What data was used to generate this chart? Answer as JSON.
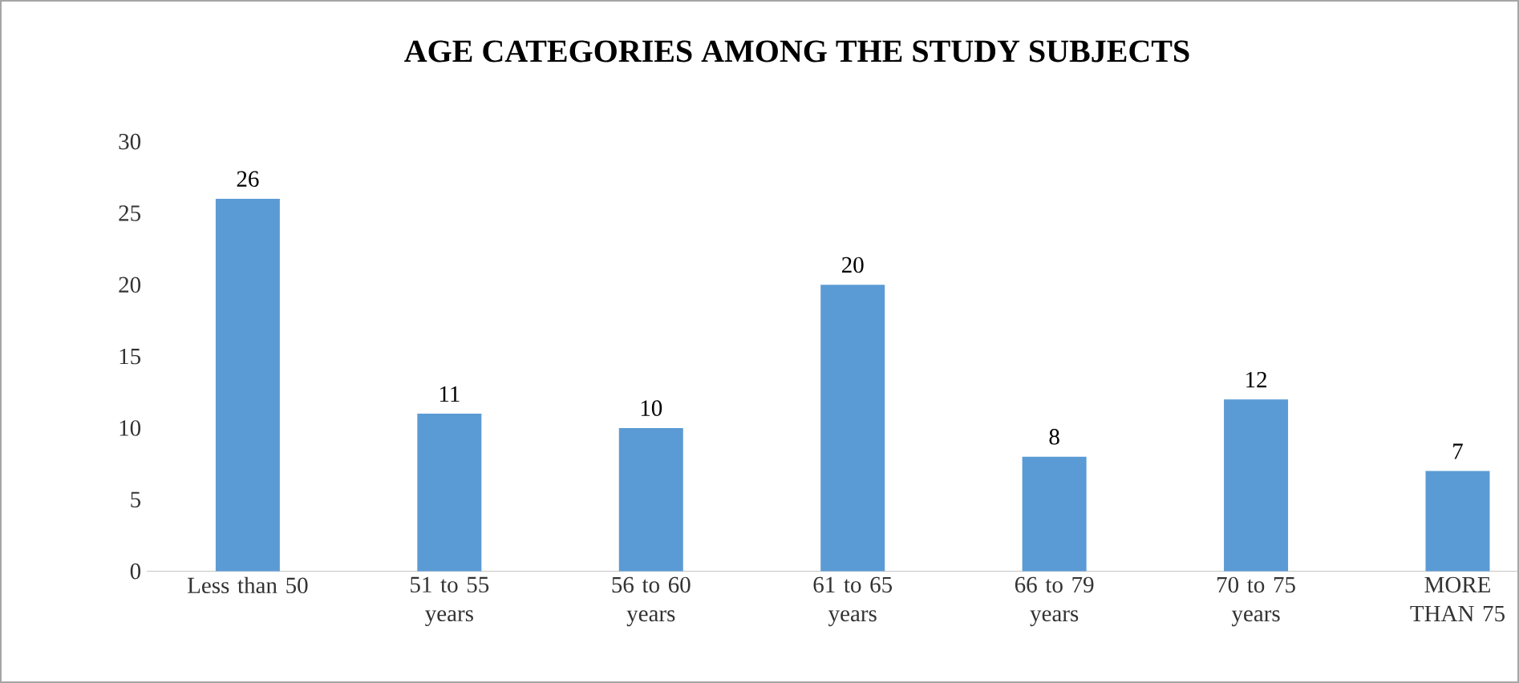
{
  "chart_data": {
    "type": "bar",
    "title": "AGE CATEGORIES AMONG THE STUDY SUBJECTS",
    "categories": [
      "Less than 50",
      "51 to 55 years",
      "56 to 60 years",
      "61 to 65 years",
      "66 to 79 years",
      "70 to 75 years",
      "MORE THAN 75"
    ],
    "values": [
      26,
      11,
      10,
      20,
      8,
      12,
      7
    ],
    "color": "#5b9bd5",
    "ylim": [
      0,
      30
    ],
    "yticks": [
      0,
      5,
      10,
      15,
      20,
      25,
      30
    ],
    "data_labels": true,
    "grid": false
  }
}
